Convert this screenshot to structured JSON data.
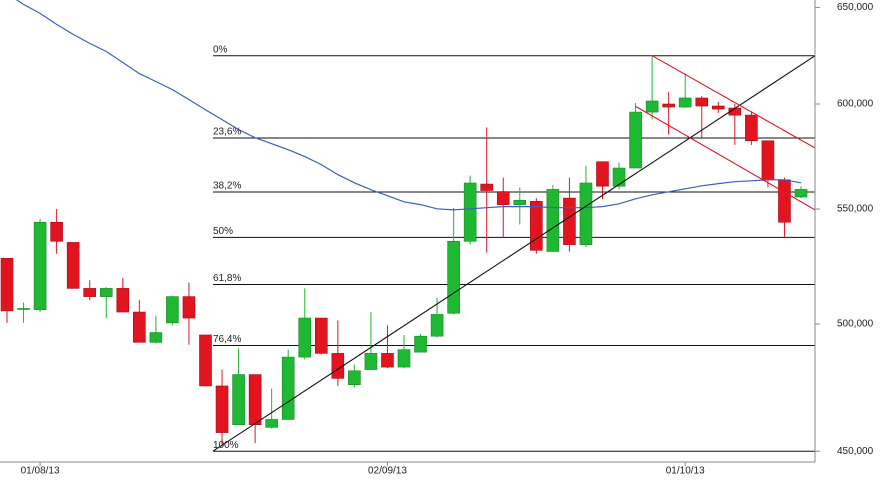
{
  "chart_data": {
    "type": "candlestick",
    "categories": [
      null,
      null,
      "01/08/13",
      null,
      null,
      null,
      null,
      null,
      null,
      null,
      null,
      null,
      null,
      null,
      null,
      null,
      null,
      null,
      null,
      null,
      null,
      null,
      null,
      "02/09/13",
      null,
      null,
      null,
      null,
      null,
      null,
      null,
      null,
      null,
      null,
      null,
      null,
      null,
      null,
      null,
      null,
      null,
      "01/10/13",
      null,
      null,
      null,
      null,
      null,
      null,
      null
    ],
    "open": [
      528000,
      506500,
      506000,
      544000,
      535000,
      515000,
      511500,
      515000,
      505000,
      492500,
      500500,
      511500,
      495500,
      475000,
      460000,
      479500,
      459000,
      462000,
      486500,
      502500,
      488000,
      475500,
      481500,
      488000,
      482500,
      488500,
      495000,
      504500,
      535500,
      561500,
      558000,
      552000,
      553500,
      531000,
      555000,
      534000,
      572000,
      560500,
      569000,
      596000,
      600000,
      598500,
      603000,
      599000,
      598000,
      594500,
      582000,
      563500,
      555500
    ],
    "high": [
      528000,
      509000,
      545500,
      550000,
      535000,
      518500,
      515500,
      519500,
      510000,
      503500,
      512000,
      517500,
      495500,
      481500,
      490000,
      479500,
      474000,
      489500,
      515000,
      502500,
      501500,
      483500,
      505000,
      499500,
      495500,
      496000,
      511000,
      550500,
      565500,
      588500,
      564500,
      560000,
      555000,
      561000,
      564500,
      570000,
      572000,
      571500,
      600500,
      624500,
      606000,
      615500,
      604000,
      601000,
      600000,
      596000,
      582000,
      564500,
      560500
    ],
    "low": [
      500500,
      500500,
      505000,
      530000,
      515000,
      510000,
      502500,
      505000,
      492500,
      492000,
      499500,
      491500,
      475000,
      452500,
      460000,
      453000,
      458500,
      462000,
      485500,
      487500,
      475000,
      474500,
      481500,
      482000,
      482000,
      488500,
      494500,
      504000,
      534000,
      530500,
      537500,
      543000,
      530000,
      531000,
      531000,
      533000,
      554500,
      559000,
      569000,
      592500,
      585000,
      598000,
      583500,
      595500,
      580000,
      580000,
      560000,
      537500,
      555000
    ],
    "close": [
      505500,
      506500,
      544000,
      535500,
      515000,
      511500,
      515000,
      505000,
      492500,
      496500,
      511500,
      502500,
      475000,
      457000,
      479500,
      460000,
      462000,
      486500,
      502500,
      488000,
      478000,
      481000,
      488000,
      482500,
      489500,
      495000,
      504000,
      535500,
      562000,
      558500,
      552000,
      554000,
      531500,
      559000,
      534000,
      562000,
      560500,
      569000,
      596000,
      601500,
      598500,
      603000,
      599000,
      597500,
      594500,
      582000,
      563500,
      544000,
      559000
    ],
    "up_color": "#1fb832",
    "down_color": "#e2141f",
    "moving_average": {
      "color": "#3b5fc4",
      "values": [
        657600,
        651600,
        646800,
        640900,
        635600,
        630900,
        626700,
        621000,
        615300,
        611300,
        607200,
        602200,
        597200,
        592300,
        587400,
        583500,
        580600,
        577700,
        574400,
        570600,
        565900,
        562100,
        558900,
        556100,
        553300,
        552000,
        550100,
        549600,
        550100,
        550600,
        551100,
        551100,
        551100,
        550600,
        550600,
        550600,
        551100,
        552400,
        554700,
        556500,
        557900,
        559300,
        560700,
        561700,
        562600,
        563000,
        563500,
        563500,
        562100
      ]
    },
    "fib_levels": [
      {
        "value": 624500,
        "label": "0%"
      },
      {
        "value": 583318,
        "label": "23,6%"
      },
      {
        "value": 557841,
        "label": "38,2%"
      },
      {
        "value": 537250,
        "label": "50%"
      },
      {
        "value": 516659,
        "label": "61,8%"
      },
      {
        "value": 491182,
        "label": "76,4%"
      },
      {
        "value": 450000,
        "label": "100%"
      }
    ],
    "trendlines": [
      {
        "color": "#111111",
        "x": [
          12.45,
          48.85
        ],
        "y": [
          450000,
          624500
        ]
      },
      {
        "color": "#e2141f",
        "x": [
          39,
          48.85
        ],
        "y": [
          624500,
          578500
        ]
      },
      {
        "color": "#e2141f",
        "x": [
          38.03,
          48.85
        ],
        "y": [
          598700,
          549600
        ]
      }
    ],
    "ylim": [
      446000,
      654000
    ],
    "ylog": true,
    "yticks": [
      {
        "value": 450000,
        "label": "450,000"
      },
      {
        "value": 500000,
        "label": "500,000"
      },
      {
        "value": 550000,
        "label": "550,000"
      },
      {
        "value": 600000,
        "label": "600,000"
      },
      {
        "value": 650000,
        "label": "650,000"
      }
    ]
  }
}
